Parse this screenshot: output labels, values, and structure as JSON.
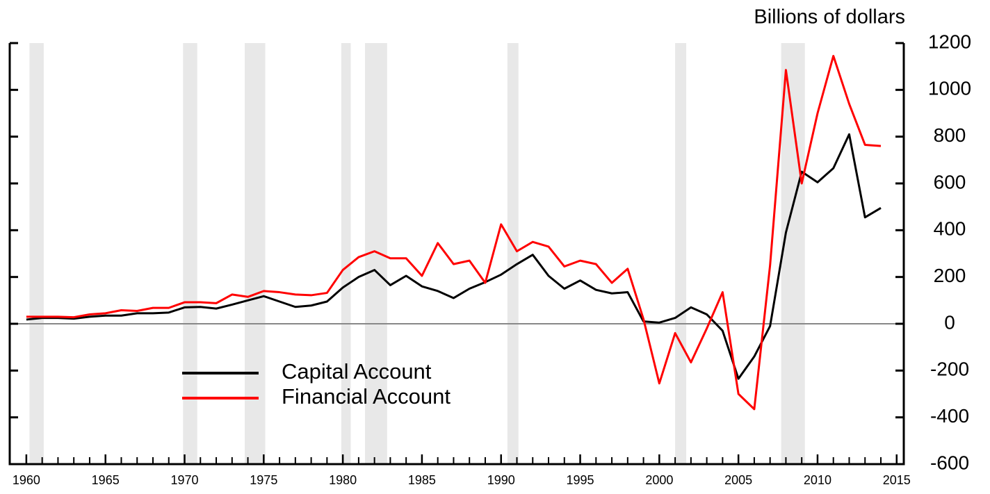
{
  "chart_data": {
    "type": "line",
    "axis_label": "Billions of dollars",
    "x": [
      1960,
      1961,
      1962,
      1963,
      1964,
      1965,
      1966,
      1967,
      1968,
      1969,
      1970,
      1971,
      1972,
      1973,
      1974,
      1975,
      1976,
      1977,
      1978,
      1979,
      1980,
      1981,
      1982,
      1983,
      1984,
      1985,
      1986,
      1987,
      1988,
      1989,
      1990,
      1991,
      1992,
      1993,
      1994,
      1995,
      1996,
      1997,
      1998,
      1999,
      2000,
      2001,
      2002,
      2003,
      2004,
      2005,
      2006,
      2007,
      2008,
      2009,
      2010,
      2011,
      2012,
      2013,
      2014
    ],
    "series": [
      {
        "name": "Capital Account",
        "color": "#000000",
        "values": [
          18,
          25,
          25,
          22,
          30,
          35,
          35,
          45,
          45,
          48,
          70,
          72,
          65,
          82,
          100,
          118,
          95,
          72,
          78,
          95,
          155,
          200,
          230,
          165,
          205,
          160,
          140,
          110,
          150,
          178,
          210,
          255,
          295,
          205,
          150,
          185,
          145,
          130,
          135,
          10,
          5,
          25,
          70,
          40,
          -30,
          -235,
          -140,
          -10,
          390,
          650,
          605,
          665,
          810,
          455,
          495
        ]
      },
      {
        "name": "Financial Account",
        "color": "#ff0000",
        "values": [
          30,
          30,
          30,
          28,
          40,
          45,
          58,
          55,
          68,
          68,
          92,
          92,
          88,
          125,
          115,
          140,
          135,
          125,
          122,
          132,
          230,
          285,
          310,
          280,
          280,
          205,
          345,
          255,
          270,
          175,
          425,
          310,
          350,
          330,
          245,
          270,
          255,
          175,
          235,
          20,
          -255,
          -40,
          -165,
          -20,
          135,
          -300,
          -365,
          250,
          1085,
          600,
          900,
          1145,
          940,
          765,
          760
        ]
      }
    ],
    "recessions": [
      [
        1960.2,
        1961.1
      ],
      [
        1969.9,
        1970.8
      ],
      [
        1973.8,
        1975.1
      ],
      [
        1979.9,
        1980.5
      ],
      [
        1981.4,
        1982.8
      ],
      [
        1990.4,
        1991.1
      ],
      [
        2001.0,
        2001.7
      ],
      [
        2007.7,
        2009.2
      ]
    ],
    "xlim": [
      1958.95,
      2015.45
    ],
    "xticks": [
      1960,
      1965,
      1970,
      1975,
      1980,
      1985,
      1990,
      1995,
      2000,
      2005,
      2010,
      2015
    ],
    "ylim": [
      -600,
      1200
    ],
    "yticks": [
      -600,
      -400,
      -200,
      0,
      200,
      400,
      600,
      800,
      1000,
      1200
    ],
    "zero_line": true,
    "legend": "lower left"
  }
}
